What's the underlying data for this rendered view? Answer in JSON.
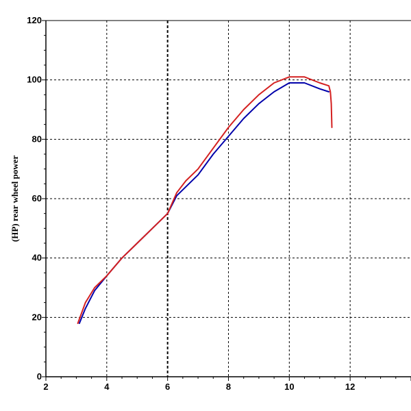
{
  "chart_data": {
    "type": "line",
    "title": "",
    "xlabel": "",
    "ylabel": "(HP) rear wheel power",
    "xlim": [
      2,
      14
    ],
    "ylim": [
      0,
      120
    ],
    "x_ticks": [
      2,
      4,
      6,
      8,
      10,
      12
    ],
    "y_ticks": [
      0,
      20,
      40,
      60,
      80,
      100,
      120
    ],
    "grid": true,
    "legend": "none",
    "series": [
      {
        "color": "#0000aa",
        "x": [
          3.1,
          3.3,
          3.6,
          4.0,
          4.5,
          5.0,
          5.5,
          6.0,
          6.3,
          6.6,
          7.0,
          7.5,
          8.0,
          8.5,
          9.0,
          9.5,
          10.0,
          10.5,
          11.0,
          11.3
        ],
        "y": [
          18,
          23,
          29,
          34,
          40,
          45,
          50,
          55,
          61,
          64,
          68,
          75,
          81,
          87,
          92,
          96,
          99,
          99,
          97,
          96
        ]
      },
      {
        "color": "#d42020",
        "x": [
          3.05,
          3.3,
          3.6,
          4.0,
          4.5,
          5.0,
          5.5,
          6.0,
          6.3,
          6.6,
          7.0,
          7.5,
          8.0,
          8.5,
          9.0,
          9.5,
          10.0,
          10.5,
          11.0,
          11.3,
          11.35,
          11.38,
          11.4
        ],
        "y": [
          18,
          25,
          30,
          34,
          40,
          45,
          50,
          55,
          62,
          66,
          70,
          77,
          84,
          90,
          95,
          99,
          101,
          101,
          99,
          98,
          96,
          92,
          84
        ]
      }
    ]
  }
}
